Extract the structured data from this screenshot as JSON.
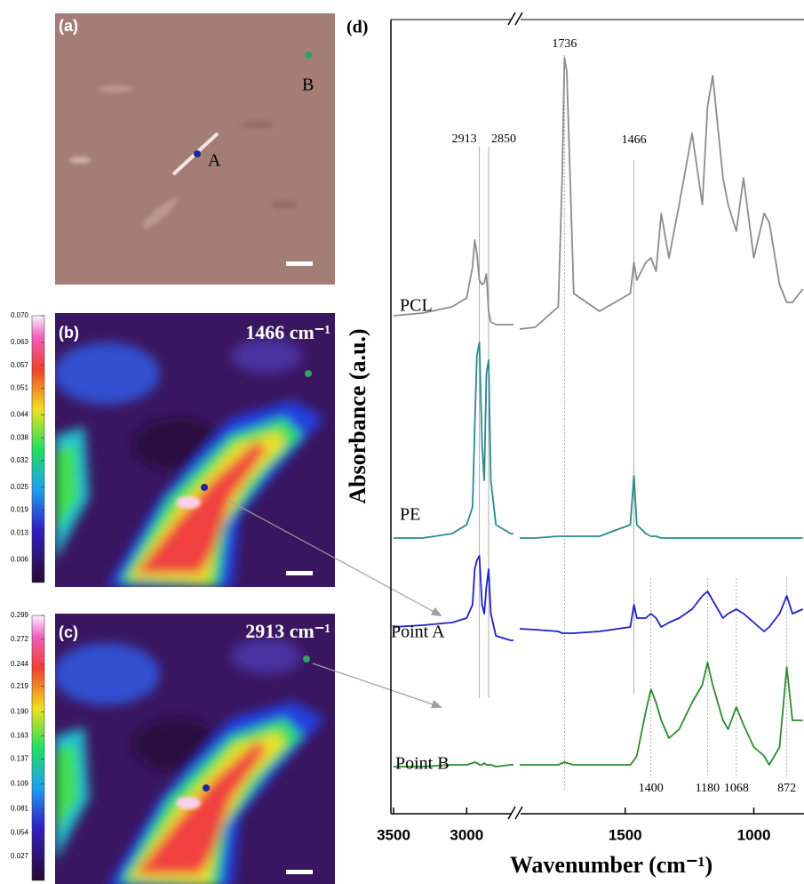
{
  "panels": {
    "a": {
      "label": "(a)",
      "points": [
        "A",
        "B"
      ]
    },
    "b": {
      "label": "(b)",
      "title": "1466 cm⁻¹",
      "colorbar": {
        "clim": [
          0,
          0.07
        ],
        "ticks": [
          {
            "value": 0.07,
            "label": "0.070"
          },
          0.063,
          0.057,
          0.051,
          0.044,
          0.038,
          0.032,
          0.025,
          0.019,
          0.013,
          0.006
        ]
      }
    },
    "c": {
      "label": "(c)",
      "title": "2913 cm⁻¹",
      "colorbar": {
        "clim": [
          0,
          0.299
        ],
        "ticks": [
          0.299,
          0.272,
          0.244,
          0.219,
          {
            "value": 0.19,
            "label": "0.190"
          },
          0.163,
          0.137,
          0.109,
          0.081,
          0.054,
          0.027
        ]
      }
    }
  },
  "chart_data": {
    "type": "line",
    "label": "(d)",
    "xlabel": "Wavenumber (cm⁻¹)",
    "ylabel": "Absorbance (a.u.)",
    "xlim": [
      3500,
      805
    ],
    "x_break": [
      2680,
      1910
    ],
    "ylim": [
      0,
      893
    ],
    "xticks": [
      3500,
      3000,
      1500,
      1000
    ],
    "peak_labels": [
      2913,
      2850,
      1736,
      1466,
      1400,
      1180,
      1068,
      872
    ],
    "x": [
      3500,
      3300,
      3100,
      3000,
      2960,
      2945,
      2930,
      2913,
      2895,
      2880,
      2865,
      2850,
      2835,
      2800,
      2700,
      2680,
      2300,
      1910,
      1850,
      1760,
      1745,
      1736,
      1727,
      1700,
      1600,
      1480,
      1466,
      1455,
      1420,
      1400,
      1380,
      1360,
      1330,
      1290,
      1240,
      1200,
      1180,
      1160,
      1120,
      1100,
      1068,
      1040,
      1000,
      960,
      940,
      900,
      872,
      850,
      810
    ],
    "series": [
      {
        "name": "PCL",
        "color": "#8c8c8c",
        "values": [
          560,
          563,
          570,
          580,
          615,
          645,
          630,
          600,
          595,
          597,
          607,
          565,
          553,
          550,
          550,
          550,
          null,
          545,
          547,
          570,
          715,
          850,
          835,
          585,
          565,
          585,
          620,
          600,
          620,
          625,
          610,
          675,
          625,
          685,
          765,
          685,
          795,
          830,
          715,
          685,
          655,
          715,
          625,
          675,
          665,
          595,
          575,
          575,
          590
        ]
      },
      {
        "name": "PE",
        "color": "#2a8a8a",
        "values": [
          310,
          310,
          315,
          325,
          345,
          435,
          515,
          530,
          415,
          375,
          495,
          510,
          375,
          325,
          315,
          315,
          null,
          310,
          310,
          312,
          312,
          312,
          312,
          312,
          312,
          325,
          380,
          325,
          315,
          312,
          312,
          310,
          310,
          310,
          310,
          310,
          310,
          310,
          310,
          310,
          310,
          310,
          310,
          310,
          310,
          310,
          310,
          310,
          310
        ]
      },
      {
        "name": "Point A",
        "color": "#2020c8",
        "values": [
          210,
          212,
          215,
          220,
          235,
          275,
          285,
          290,
          235,
          225,
          255,
          275,
          225,
          200,
          195,
          195,
          null,
          208,
          207,
          205,
          203,
          203,
          203,
          203,
          205,
          210,
          235,
          220,
          220,
          225,
          220,
          210,
          215,
          220,
          230,
          245,
          250,
          240,
          220,
          225,
          230,
          225,
          215,
          205,
          210,
          225,
          245,
          225,
          230
        ]
      },
      {
        "name": "Point B",
        "color": "#2e8b2e",
        "values": [
          53,
          53,
          55,
          55,
          57,
          58,
          57,
          55,
          55,
          57,
          55,
          55,
          55,
          53,
          55,
          55,
          null,
          55,
          55,
          55,
          57,
          58,
          57,
          55,
          55,
          55,
          60,
          65,
          115,
          140,
          125,
          105,
          85,
          95,
          125,
          145,
          170,
          145,
          105,
          95,
          120,
          100,
          75,
          65,
          55,
          75,
          165,
          105,
          105
        ]
      }
    ]
  }
}
